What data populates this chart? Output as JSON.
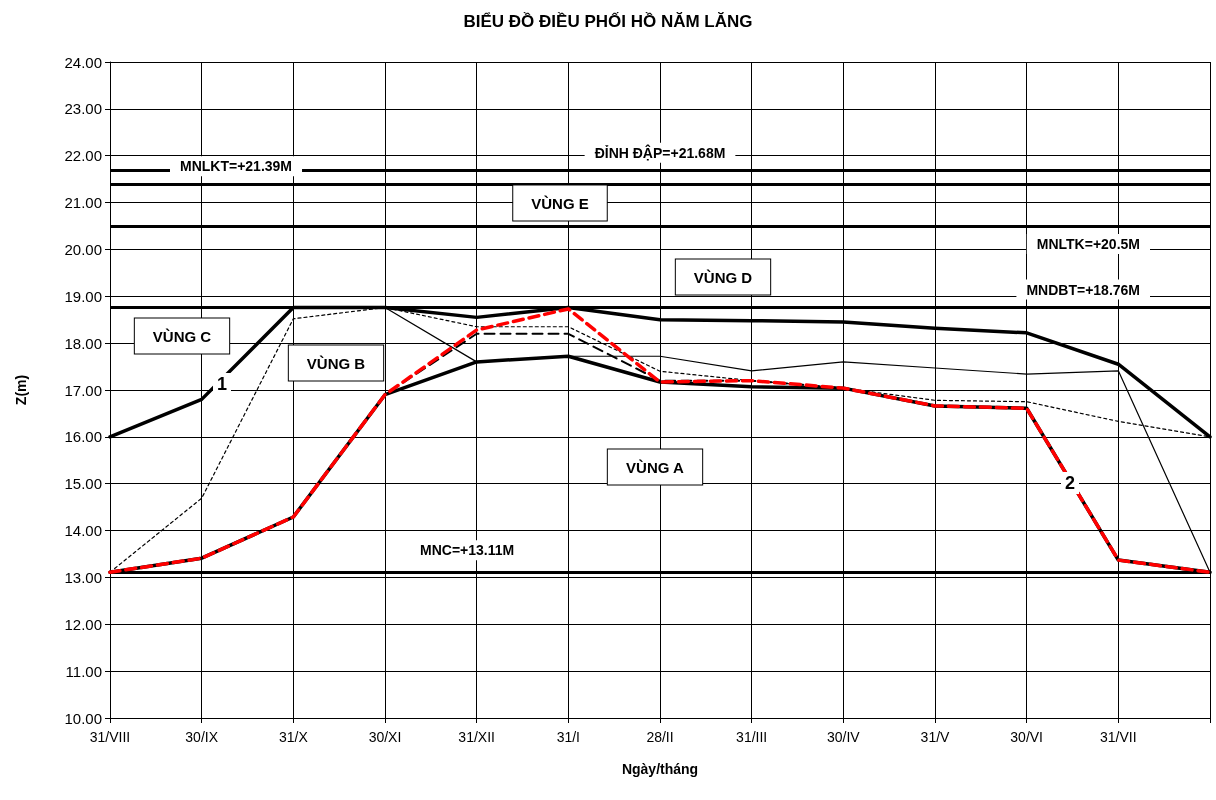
{
  "chart_data": {
    "type": "line",
    "title": "BIỂU ĐỒ ĐIỀU PHỐI HỒ NĂM LĂNG",
    "xlabel": "Ngày/tháng",
    "ylabel": "Z(m)",
    "categories": [
      "31/VIII",
      "30/IX",
      "31/X",
      "30/XI",
      "31/XII",
      "31/I",
      "28/II",
      "31/III",
      "30/IV",
      "31/V",
      "30/VI",
      "31/VII",
      null
    ],
    "ylim": [
      10,
      24
    ],
    "yticks": [
      {
        "value": 10,
        "label": "10.00"
      },
      {
        "value": 11,
        "label": "11.00"
      },
      {
        "value": 12,
        "label": "12.00"
      },
      {
        "value": 13,
        "label": "13.00"
      },
      {
        "value": 14,
        "label": "14.00"
      },
      {
        "value": 15,
        "label": "15.00"
      },
      {
        "value": 16,
        "label": "16.00"
      },
      {
        "value": 17,
        "label": "17.00"
      },
      {
        "value": 18,
        "label": "18.00"
      },
      {
        "value": 19,
        "label": "19.00"
      },
      {
        "value": 20,
        "label": "20.00"
      },
      {
        "value": 21,
        "label": "21.00"
      },
      {
        "value": 22,
        "label": "22.00"
      },
      {
        "value": 23,
        "label": "23.00"
      },
      {
        "value": 24,
        "label": "24.00"
      }
    ],
    "grid": true,
    "marker": "none",
    "series": [
      {
        "color": "#000000",
        "line_style": "solid",
        "values": [
          16.0,
          16.8,
          18.76,
          18.76,
          18.55,
          18.76,
          18.5,
          18.48,
          18.45,
          18.32,
          18.22,
          17.55,
          16.0
        ]
      },
      {
        "color": "#000000",
        "line_style": "solid",
        "values": [
          13.11,
          13.41,
          14.29,
          16.9,
          17.6,
          17.72,
          17.17,
          17.07,
          17.04,
          16.66,
          16.61,
          13.37,
          13.11
        ]
      },
      {
        "color": "#000000",
        "line_style": "dotted",
        "values": [
          13.11,
          14.69,
          18.52,
          18.76,
          18.35,
          18.35,
          17.4,
          17.2,
          17.04,
          16.78,
          16.75,
          16.33,
          16.0
        ]
      },
      {
        "color": "#000000",
        "line_style": "solid",
        "values": [
          null,
          null,
          18.76,
          18.76,
          17.6,
          17.72,
          17.72,
          17.41,
          17.6,
          17.47,
          17.34,
          17.41,
          13.11
        ]
      },
      {
        "color": "#000000",
        "line_style": "dashed",
        "values": [
          13.11,
          13.41,
          14.29,
          16.9,
          18.2,
          18.2,
          17.2,
          17.2,
          17.04,
          16.66,
          16.61,
          13.37,
          13.11
        ]
      },
      {
        "color": "#ff0000",
        "line_style": "dashed",
        "values": [
          13.11,
          13.41,
          14.29,
          16.9,
          18.28,
          18.73,
          17.17,
          17.2,
          17.04,
          16.66,
          16.61,
          13.37,
          13.11
        ]
      }
    ],
    "ref_lines": [
      {
        "axis": "y",
        "value": 21.68,
        "label": "ĐỈNH ĐẬP=+21.68M",
        "color": "#000000"
      },
      {
        "axis": "y",
        "value": 21.39,
        "label": "MNLKT=+21.39M",
        "color": "#000000"
      },
      {
        "axis": "y",
        "value": 20.5,
        "label": "MNLTK=+20.5M",
        "color": "#000000"
      },
      {
        "axis": "y",
        "value": 18.76,
        "label": "MNDBT=+18.76M",
        "color": "#000000"
      },
      {
        "axis": "y",
        "value": 13.11,
        "label": "MNC=+13.11M",
        "color": "#000000"
      }
    ],
    "annotations": [
      "VÙNG E",
      "VÙNG D",
      "VÙNG C",
      "VÙNG B",
      "VÙNG A",
      "1",
      "2"
    ]
  }
}
